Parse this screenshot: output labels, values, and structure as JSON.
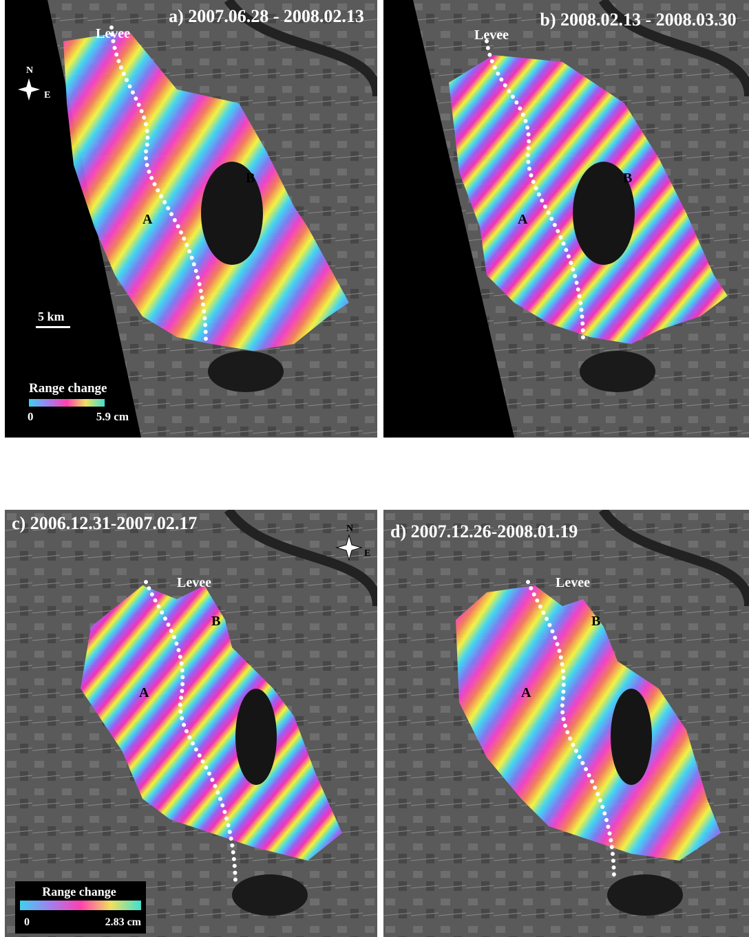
{
  "panels": [
    {
      "title": "a) 2007.06.28 - 2008.02.13",
      "levee": "Levee",
      "region_a": "A",
      "region_b": "B",
      "compass": {
        "north": "N",
        "east": "E"
      },
      "scale_bar": "5 km",
      "colorbar": {
        "title": "Range change",
        "min": "0",
        "max": "5.9 cm"
      }
    },
    {
      "title": "b) 2008.02.13 - 2008.03.30",
      "levee": "Levee",
      "region_a": "A",
      "region_b": "B"
    },
    {
      "title": "c) 2006.12.31-2007.02.17",
      "levee": "Levee",
      "region_a": "A",
      "region_b": "B",
      "compass": {
        "north": "N",
        "east": "E"
      },
      "colorbar": {
        "title": "Range change",
        "min": "0",
        "max": "2.83 cm"
      }
    },
    {
      "title": "d) 2007.12.26-2008.01.19",
      "levee": "Levee",
      "region_a": "A",
      "region_b": "B"
    }
  ]
}
